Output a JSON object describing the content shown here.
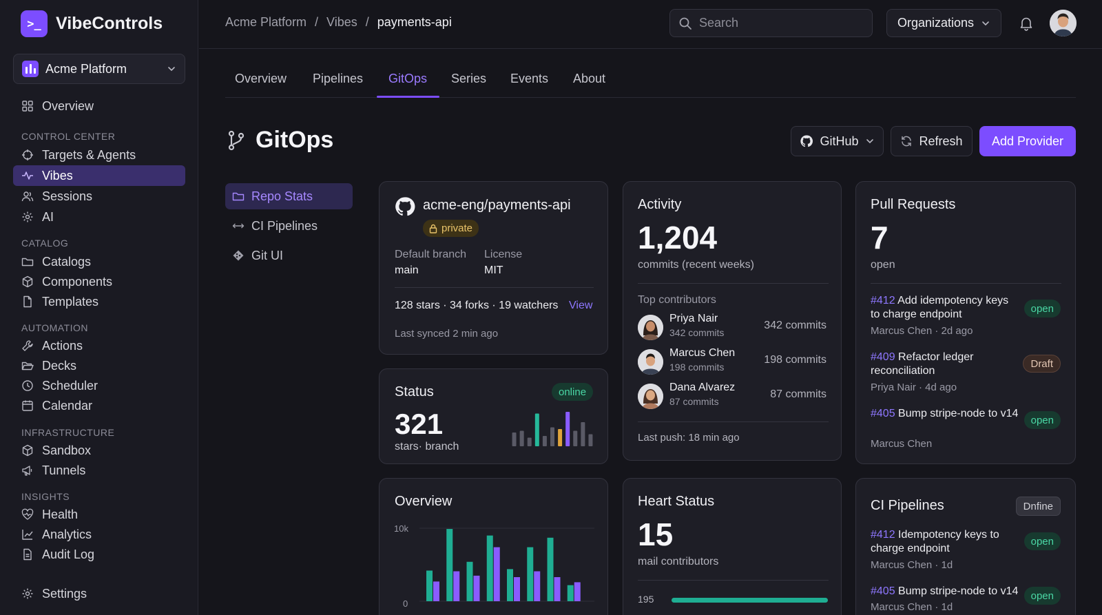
{
  "app": {
    "brand_name": "VibeControls",
    "brand_glyph": ">_",
    "org_selector": "Acme Platform",
    "accent": "#7c4dff",
    "open_color": "#4ad7a5"
  },
  "sidebar": {
    "top_item": "Overview",
    "sections": [
      {
        "title": "CONTROL CENTER",
        "items": [
          "Targets & Agents",
          "Vibes",
          "Sessions",
          "AI"
        ]
      },
      {
        "title": "CATALOG",
        "items": [
          "Catalogs",
          "Components",
          "Templates"
        ]
      },
      {
        "title": "AUTOMATION",
        "items": [
          "Actions",
          "Decks",
          "Scheduler",
          "Calendar"
        ]
      },
      {
        "title": "INFRASTRUCTURE",
        "items": [
          "Sandbox",
          "Tunnels"
        ]
      },
      {
        "title": "INSIGHTS",
        "items": [
          "Health",
          "Analytics",
          "Audit Log"
        ]
      }
    ],
    "active_item": "Vibes",
    "settings": "Settings"
  },
  "topbar": {
    "breadcrumbs": [
      "Acme Platform",
      "Vibes",
      "payments-api"
    ],
    "separator": "/",
    "search_placeholder": "Search",
    "organizations_label": "Organizations"
  },
  "tabs": [
    "Overview",
    "Pipelines",
    "GitOps",
    "Series",
    "Events",
    "About"
  ],
  "active_tab": "GitOps",
  "page": {
    "title": "GitOps",
    "provider_button": "GitHub",
    "refresh_button": "Refresh",
    "add_provider_button": "Add Provider"
  },
  "subnav": [
    "Repo Stats",
    "CI Pipelines",
    "Git UI"
  ],
  "repo_card": {
    "repo_name": "acme-eng/payments-api",
    "visibility": "private",
    "default_branch_label": "Default branch",
    "default_branch": "main",
    "license_label": "License",
    "license": "MIT",
    "stats_text": "128 stars · 34 forks · 19 watchers",
    "view_link": "View",
    "last_synced": "Last synced 2 min ago"
  },
  "status_card": {
    "title": "Status",
    "badge": "online",
    "value": "321",
    "caption": "stars· branch",
    "sparkline": [
      {
        "v": 0.4,
        "c": "#5a5a66"
      },
      {
        "v": 0.45,
        "c": "#5a5a66"
      },
      {
        "v": 0.25,
        "c": "#5a5a66"
      },
      {
        "v": 0.95,
        "c": "#26b99a"
      },
      {
        "v": 0.3,
        "c": "#5a5a66"
      },
      {
        "v": 0.55,
        "c": "#5a5a66"
      },
      {
        "v": 0.5,
        "c": "#e0a43c"
      },
      {
        "v": 1.0,
        "c": "#8a5cff"
      },
      {
        "v": 0.45,
        "c": "#5a5a66"
      },
      {
        "v": 0.7,
        "c": "#5a5a66"
      },
      {
        "v": 0.35,
        "c": "#5a5a66"
      }
    ]
  },
  "activity_card": {
    "title": "Activity",
    "value": "1,204",
    "caption": "commits (recent weeks)",
    "contributors_title": "Top contributors",
    "contributors": [
      {
        "name": "Priya Nair",
        "sub": "342 commits",
        "count": "342 commits",
        "gender": "f"
      },
      {
        "name": "Marcus Chen",
        "sub": "198 commits",
        "count": "198 commits",
        "gender": "m"
      },
      {
        "name": "Dana Alvarez",
        "sub": "87 commits",
        "count": "87 commits",
        "gender": "f"
      }
    ],
    "last_push": "Last push: 18 min ago"
  },
  "pr_card": {
    "title": "Pull Requests",
    "value": "7",
    "caption": "open",
    "items": [
      {
        "id": "#412",
        "title": "Add idempotency keys to charge endpoint",
        "meta": "Marcus Chen · 2d ago",
        "status": "open"
      },
      {
        "id": "#409",
        "title": "Refactor ledger reconciliation",
        "meta": "Priya Nair · 4d ago",
        "status": "Draft"
      },
      {
        "id": "#405",
        "title": "Bump stripe-node to v14",
        "meta": "Marcus Chen",
        "status": "open"
      }
    ]
  },
  "overview_card": {
    "title": "Overview",
    "y_top_label": "10k",
    "y_bottom_label": "0",
    "teal_color": "#1fae93",
    "purple_color": "#8a5cff",
    "chart_data": {
      "type": "bar",
      "ylim": [
        0,
        10000
      ],
      "series": [
        {
          "values": [
            4200,
            9900,
            5400,
            9000,
            4400,
            7400,
            8700,
            2200
          ]
        },
        {
          "values": [
            2700,
            4100,
            3500,
            7400,
            3300,
            4100,
            3300,
            2600
          ]
        }
      ]
    }
  },
  "heart_card": {
    "title": "Heart Status",
    "value": "15",
    "caption": "mail contributors",
    "row_label": "195",
    "row_fill": 1.0
  },
  "ci_card": {
    "title": "CI Pipelines",
    "badge": "Dnfine",
    "items": [
      {
        "id": "#412",
        "title": "Idempotency keys to charge endpoint",
        "meta": "Marcus Chen · 1d",
        "status": "open"
      },
      {
        "id": "#405",
        "title": "Bump stripe-node to v14",
        "meta": "Marcus Chen · 1d",
        "status": "open"
      }
    ]
  }
}
